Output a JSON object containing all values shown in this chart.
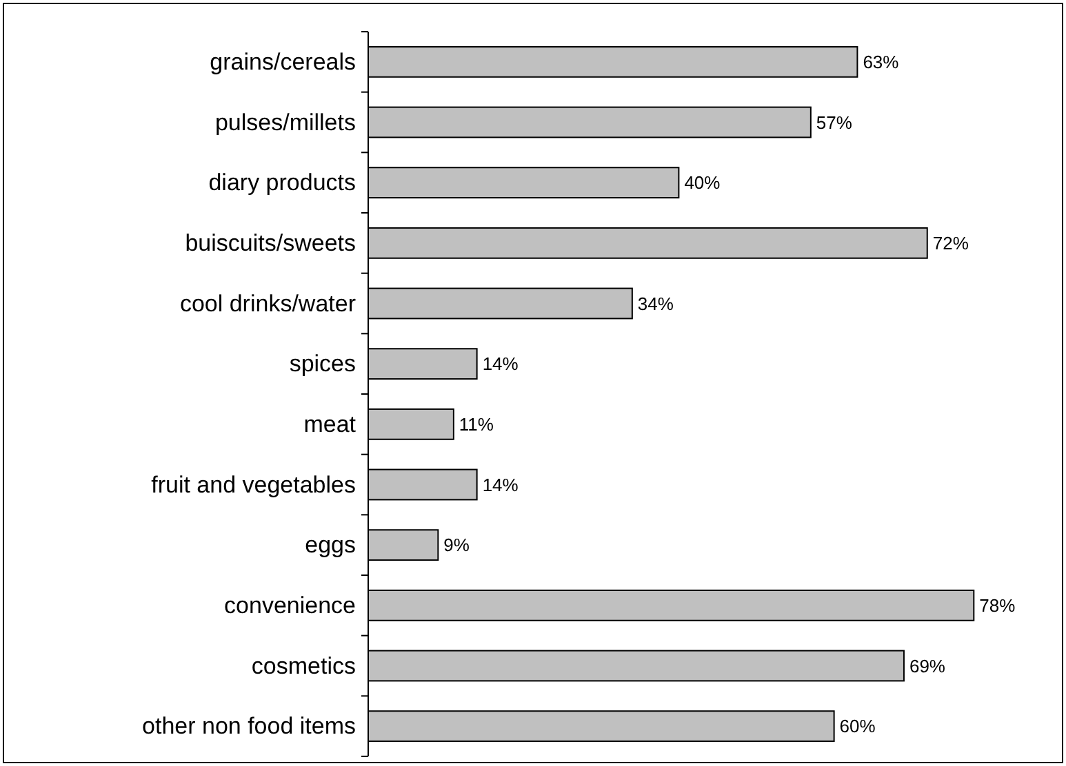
{
  "chart_data": {
    "type": "bar",
    "orientation": "horizontal",
    "categories": [
      "grains/cereals",
      "pulses/millets",
      "diary products",
      "buiscuits/sweets",
      "cool drinks/water",
      "spices",
      "meat",
      "fruit and vegetables",
      "eggs",
      "convenience",
      "cosmetics",
      "other non food items"
    ],
    "values": [
      63,
      57,
      40,
      72,
      34,
      14,
      11,
      14,
      9,
      78,
      69,
      60
    ],
    "color": "#c0c0c0",
    "data_labels": true,
    "value_labels": [
      "63%",
      "57%",
      "40%",
      "72%",
      "34%",
      "14%",
      "11%",
      "14%",
      "9%",
      "78%",
      "69%",
      "60%"
    ]
  }
}
